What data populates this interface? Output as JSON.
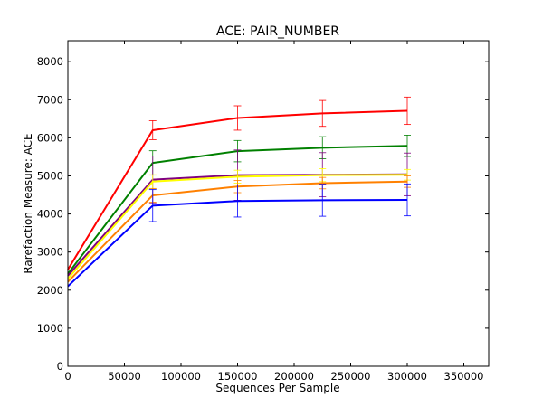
{
  "chart_data": {
    "type": "line",
    "title": "ACE: PAIR_NUMBER",
    "xlabel": "Sequences Per Sample",
    "ylabel": "Rarefaction Measure: ACE",
    "xlim": [
      0,
      372000
    ],
    "ylim": [
      0,
      8550
    ],
    "xticks": [
      0,
      50000,
      100000,
      150000,
      200000,
      250000,
      300000,
      350000
    ],
    "yticks": [
      0,
      1000,
      2000,
      3000,
      4000,
      5000,
      6000,
      7000,
      8000
    ],
    "x": [
      0,
      75000,
      150000,
      225000,
      300000
    ],
    "grid": false,
    "legend": "none",
    "series": [
      {
        "color": "#ff0000",
        "values": [
          2540,
          6200,
          6520,
          6640,
          6710
        ],
        "errors": [
          0,
          250,
          320,
          340,
          360
        ]
      },
      {
        "color": "#008000",
        "values": [
          2430,
          5340,
          5650,
          5740,
          5790
        ],
        "errors": [
          0,
          320,
          280,
          290,
          280
        ]
      },
      {
        "color": "#800080",
        "values": [
          2380,
          4900,
          5020,
          5030,
          5040
        ],
        "errors": [
          0,
          620,
          660,
          580,
          560
        ]
      },
      {
        "color": "#ffff00",
        "values": [
          2300,
          4850,
          4980,
          5020,
          5030
        ],
        "errors": [
          0,
          180,
          170,
          170,
          140
        ]
      },
      {
        "color": "#ff8000",
        "values": [
          2220,
          4490,
          4720,
          4810,
          4850
        ],
        "errors": [
          0,
          180,
          160,
          150,
          150
        ]
      },
      {
        "color": "#0000ff",
        "values": [
          2100,
          4220,
          4340,
          4360,
          4370
        ],
        "errors": [
          0,
          420,
          420,
          420,
          420
        ]
      }
    ]
  }
}
